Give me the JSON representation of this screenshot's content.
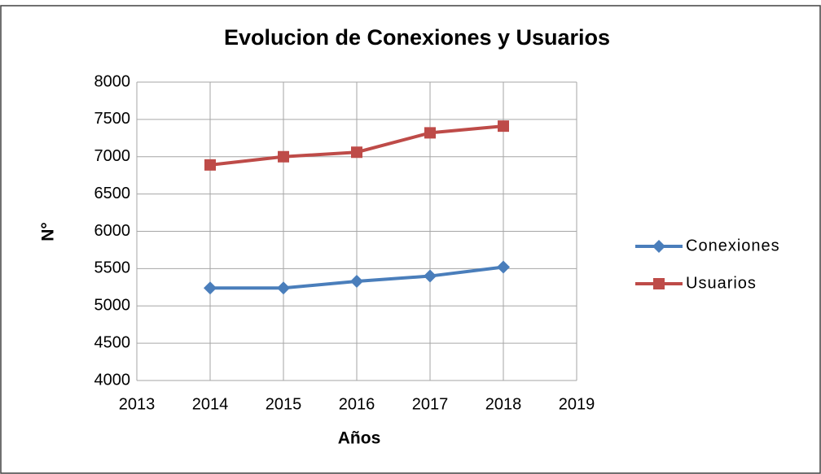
{
  "chart_data": {
    "type": "line",
    "title": "Evolucion de Conexiones y Usuarios",
    "x_label": "Años",
    "y_label": "N°",
    "x": [
      2014,
      2015,
      2016,
      2017,
      2018
    ],
    "series": [
      {
        "name": "Conexiones",
        "color": "#4a7ebb",
        "marker": "diamond",
        "values": [
          5240,
          5240,
          5330,
          5400,
          5520
        ]
      },
      {
        "name": "Usuarios",
        "color": "#be4b48",
        "marker": "square",
        "values": [
          6890,
          7000,
          7060,
          7320,
          7410
        ]
      }
    ],
    "xlim": [
      2013,
      2019
    ],
    "xticks": [
      2013,
      2014,
      2015,
      2016,
      2017,
      2018,
      2019
    ],
    "ylim": [
      4000,
      8000
    ],
    "yticks": [
      4000,
      4500,
      5000,
      5500,
      6000,
      6500,
      7000,
      7500,
      8000
    ],
    "grid": true,
    "legend": "right"
  }
}
